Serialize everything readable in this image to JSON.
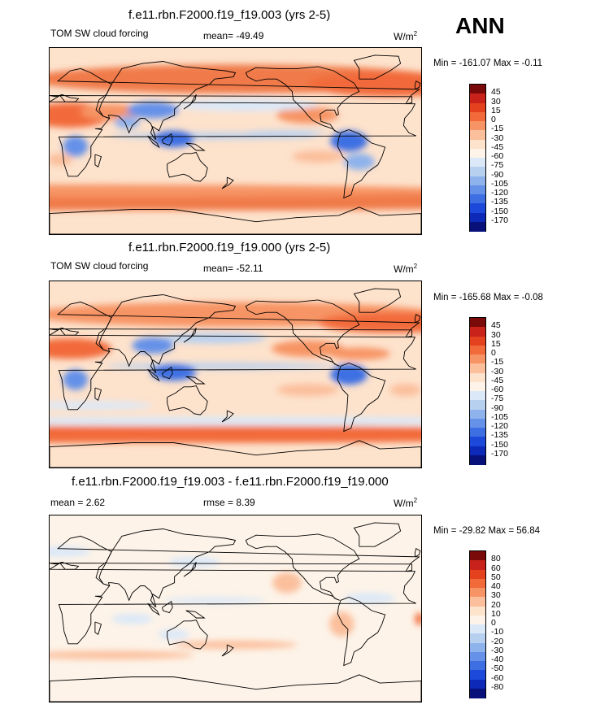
{
  "season": "ANN",
  "units_base": "W/m",
  "units_exp": "2",
  "panels": [
    {
      "title": "f.e11.rbn.F2000.f19_f19.003 (yrs 2-5)",
      "left_label": "TOM SW cloud forcing",
      "mid_label": "mean= -49.49",
      "minmax": "Min = -161.07 Max =  -0.11"
    },
    {
      "title": "f.e11.rbn.F2000.f19_f19.000 (yrs 2-5)",
      "left_label": "TOM SW cloud forcing",
      "mid_label": "mean= -52.11",
      "minmax": "Min = -165.68 Max =  -0.08"
    },
    {
      "title": "f.e11.rbn.F2000.f19_f19.003 - f.e11.rbn.F2000.f19_f19.000",
      "left_label": "mean =   2.62",
      "mid_label": "rmse =   8.39",
      "minmax": "Min = -29.82 Max =  56.84"
    }
  ],
  "chart_data": [
    {
      "type": "heatmap",
      "projection": "cylindrical-equidistant",
      "variable": "TOM SW cloud forcing",
      "mean": -49.49,
      "min": -161.07,
      "max": -0.11,
      "units": "W/m2",
      "colorbar_levels": [
        "45",
        "30",
        "15",
        "0",
        "-15",
        "-30",
        "-45",
        "-60",
        "-75",
        "-90",
        "-105",
        "-120",
        "-135",
        "-150",
        "-170"
      ],
      "colorbar_colors": [
        "#7a0a0a",
        "#c8221a",
        "#e4411f",
        "#f26a3a",
        "#f79465",
        "#fbbf9c",
        "#fde2cc",
        "#fdf3e8",
        "#dbe8f8",
        "#b7d0f0",
        "#8eb2ec",
        "#6591e8",
        "#3d6fe3",
        "#1c49d9",
        "#0d29b8",
        "#08107a"
      ]
    },
    {
      "type": "heatmap",
      "projection": "cylindrical-equidistant",
      "variable": "TOM SW cloud forcing",
      "mean": -52.11,
      "min": -165.68,
      "max": -0.08,
      "units": "W/m2",
      "colorbar_levels": [
        "45",
        "30",
        "15",
        "0",
        "-15",
        "-30",
        "-45",
        "-60",
        "-75",
        "-90",
        "-105",
        "-120",
        "-135",
        "-150",
        "-170"
      ],
      "colorbar_colors": [
        "#7a0a0a",
        "#c8221a",
        "#e4411f",
        "#f26a3a",
        "#f79465",
        "#fbbf9c",
        "#fde2cc",
        "#fdf3e8",
        "#dbe8f8",
        "#b7d0f0",
        "#8eb2ec",
        "#6591e8",
        "#3d6fe3",
        "#1c49d9",
        "#0d29b8",
        "#08107a"
      ]
    },
    {
      "type": "heatmap",
      "projection": "cylindrical-equidistant",
      "variable": "difference",
      "mean": 2.62,
      "rmse": 8.39,
      "min": -29.82,
      "max": 56.84,
      "units": "W/m2",
      "colorbar_levels": [
        "80",
        "60",
        "50",
        "40",
        "30",
        "20",
        "10",
        "0",
        "-10",
        "-20",
        "-30",
        "-40",
        "-50",
        "-60",
        "-80"
      ],
      "colorbar_colors": [
        "#7a0a0a",
        "#c8221a",
        "#e4411f",
        "#f26a3a",
        "#f79465",
        "#fbbf9c",
        "#fde2cc",
        "#fdf3e8",
        "#dbe8f8",
        "#b7d0f0",
        "#8eb2ec",
        "#6591e8",
        "#3d6fe3",
        "#1c49d9",
        "#0d29b8",
        "#08107a"
      ]
    }
  ]
}
